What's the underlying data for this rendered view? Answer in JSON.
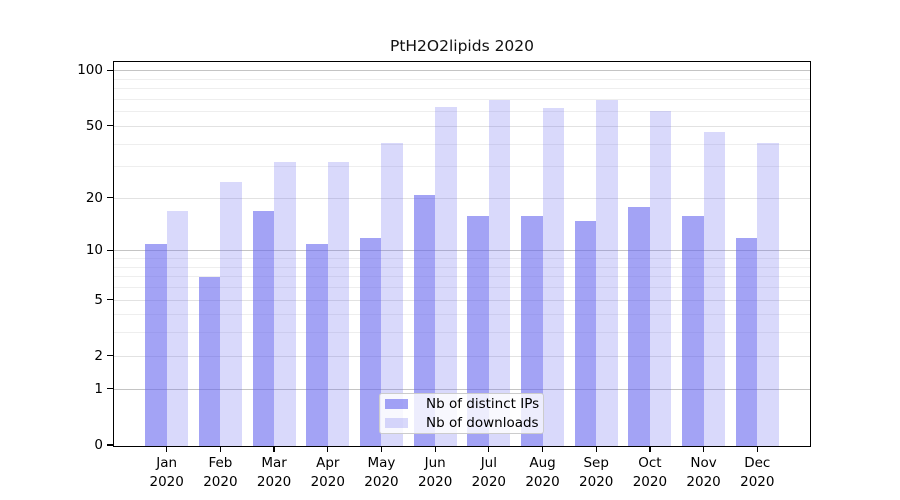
{
  "chart_data": {
    "type": "bar",
    "title": "PtH2O2lipids 2020",
    "categories": [
      {
        "month": "Jan",
        "year": "2020"
      },
      {
        "month": "Feb",
        "year": "2020"
      },
      {
        "month": "Mar",
        "year": "2020"
      },
      {
        "month": "Apr",
        "year": "2020"
      },
      {
        "month": "May",
        "year": "2020"
      },
      {
        "month": "Jun",
        "year": "2020"
      },
      {
        "month": "Jul",
        "year": "2020"
      },
      {
        "month": "Aug",
        "year": "2020"
      },
      {
        "month": "Sep",
        "year": "2020"
      },
      {
        "month": "Oct",
        "year": "2020"
      },
      {
        "month": "Nov",
        "year": "2020"
      },
      {
        "month": "Dec",
        "year": "2020"
      }
    ],
    "series": [
      {
        "name": "Nb of distinct IPs",
        "color": "rgba(102,102,238,0.60)",
        "values": [
          11,
          7,
          17,
          11,
          12,
          21,
          16,
          16,
          15,
          18,
          16,
          12
        ]
      },
      {
        "name": "Nb of downloads",
        "color": "rgba(102,102,238,0.25)",
        "values": [
          17,
          25,
          32,
          32,
          41,
          64,
          70,
          63,
          70,
          61,
          47,
          41
        ]
      }
    ],
    "yaxis": {
      "scale": "log1p",
      "ticks": [
        0,
        1,
        2,
        5,
        10,
        20,
        50,
        100
      ],
      "max": 111
    },
    "xaxis": {
      "tick_label_lines": 2
    },
    "grid": true,
    "legend_position": "lower center"
  }
}
